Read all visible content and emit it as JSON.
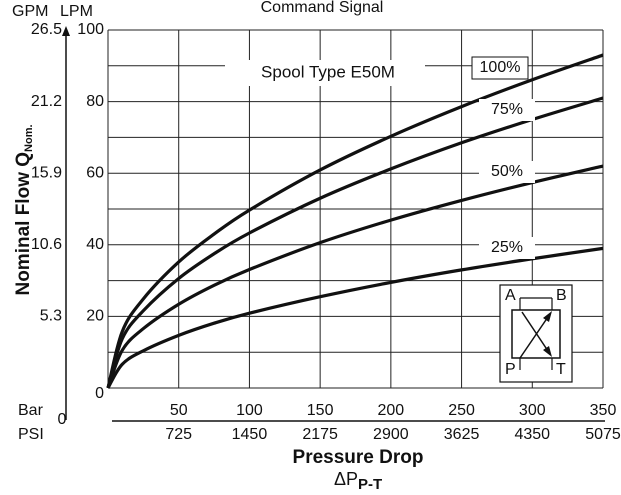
{
  "chart_data": {
    "type": "line",
    "title": "Command Signal",
    "annotation": "Spool Type E50M",
    "ylabel": "Nominal Flow Q",
    "ylabel_sub": "Nom.",
    "xlabel": "Pressure Drop",
    "xlabel2": "ΔP",
    "xlabel2_sub": "P-T",
    "y_unit": "LPM",
    "y2_unit": "GPM",
    "x_unit": "Bar",
    "x2_unit": "PSI",
    "x": [
      0,
      10,
      25,
      50,
      75,
      100,
      150,
      200,
      250,
      300,
      350
    ],
    "series": [
      {
        "name": "100%",
        "color": "#111111",
        "values": [
          0,
          15.7,
          24.9,
          35.2,
          43.0,
          49.7,
          60.9,
          70.3,
          78.6,
          86.1,
          93
        ]
      },
      {
        "name": "75%",
        "color": "#111111",
        "values": [
          0,
          13.7,
          21.6,
          30.6,
          37.5,
          43.3,
          53.0,
          61.2,
          68.5,
          75.0,
          81
        ]
      },
      {
        "name": "50%",
        "color": "#111111",
        "values": [
          0,
          10.5,
          16.6,
          23.4,
          28.7,
          33.1,
          40.6,
          46.9,
          52.4,
          57.4,
          62
        ]
      },
      {
        "name": "25%",
        "color": "#111111",
        "values": [
          0,
          6.6,
          10.4,
          14.7,
          18.1,
          20.9,
          25.5,
          29.5,
          33.0,
          36.1,
          39
        ]
      }
    ],
    "xlim": [
      0,
      350
    ],
    "xticks": [
      50,
      100,
      150,
      200,
      250,
      300,
      350
    ],
    "x2ticks": [
      {
        "value": 0,
        "label": "0"
      },
      {
        "value": 50,
        "label": "725"
      },
      {
        "value": 100,
        "label": "1450"
      },
      {
        "value": 150,
        "label": "2175"
      },
      {
        "value": 200,
        "label": "2900"
      },
      {
        "value": 250,
        "label": "3625"
      },
      {
        "value": 300,
        "label": "4350"
      },
      {
        "value": 350,
        "label": "5075"
      }
    ],
    "ylim": [
      0,
      100
    ],
    "yticks": [
      0,
      20,
      40,
      60,
      80,
      100
    ],
    "y_minor_ticks": [
      10,
      30,
      50,
      70,
      90
    ],
    "y2ticks": [
      {
        "value": 20,
        "label": "5.3"
      },
      {
        "value": 40,
        "label": "10.6"
      },
      {
        "value": 60,
        "label": "15.9"
      },
      {
        "value": 80,
        "label": "21.2"
      },
      {
        "value": 100,
        "label": "26.5"
      }
    ],
    "grid": true,
    "valve_ports": [
      "A",
      "B",
      "P",
      "T"
    ]
  }
}
